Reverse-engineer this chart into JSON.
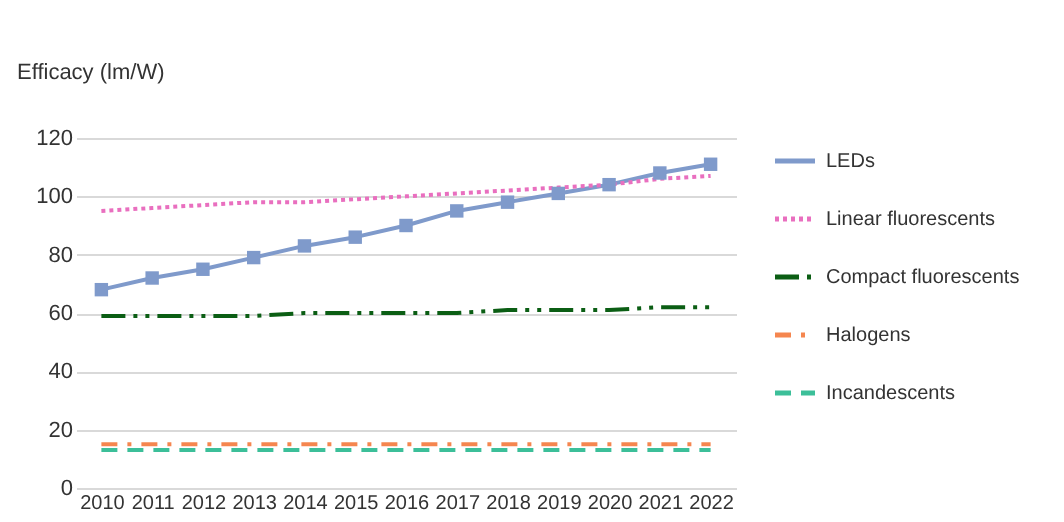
{
  "chart_data": {
    "type": "line",
    "ylabel": "Efficacy (lm/W)",
    "categories": [
      "2010",
      "2011",
      "2012",
      "2013",
      "2014",
      "2015",
      "2016",
      "2017",
      "2018",
      "2019",
      "2020",
      "2021",
      "2022"
    ],
    "ylim": [
      0,
      120
    ],
    "yticks": [
      0,
      20,
      40,
      60,
      80,
      100,
      120
    ],
    "grid": "y",
    "legend": "right",
    "series": [
      {
        "name": "LEDs",
        "color": "#7f9acb",
        "marker": "square",
        "line_style": "solid",
        "values": [
          68,
          72,
          75,
          79,
          83,
          86,
          90,
          95,
          98,
          101,
          104,
          108,
          111
        ]
      },
      {
        "name": "Linear fluorescents",
        "color": "#e96fbf",
        "marker": "none",
        "line_style": "dotted",
        "values": [
          95,
          96,
          97,
          98,
          98,
          99,
          100,
          101,
          102,
          103,
          104,
          106,
          107
        ]
      },
      {
        "name": "Compact fluorescents",
        "color": "#0b5e14",
        "marker": "none",
        "line_style": "dashdotdot",
        "values": [
          59,
          59,
          59,
          59,
          60,
          60,
          60,
          60,
          61,
          61,
          61,
          62,
          62
        ]
      },
      {
        "name": "Halogens",
        "color": "#f5864f",
        "marker": "none",
        "line_style": "dashdot",
        "values": [
          15,
          15,
          15,
          15,
          15,
          15,
          15,
          15,
          15,
          15,
          15,
          15,
          15
        ]
      },
      {
        "name": "Incandescents",
        "color": "#3cbf99",
        "marker": "none",
        "line_style": "dashed",
        "values": [
          13,
          13,
          13,
          13,
          13,
          13,
          13,
          13,
          13,
          13,
          13,
          13,
          13
        ]
      }
    ]
  }
}
